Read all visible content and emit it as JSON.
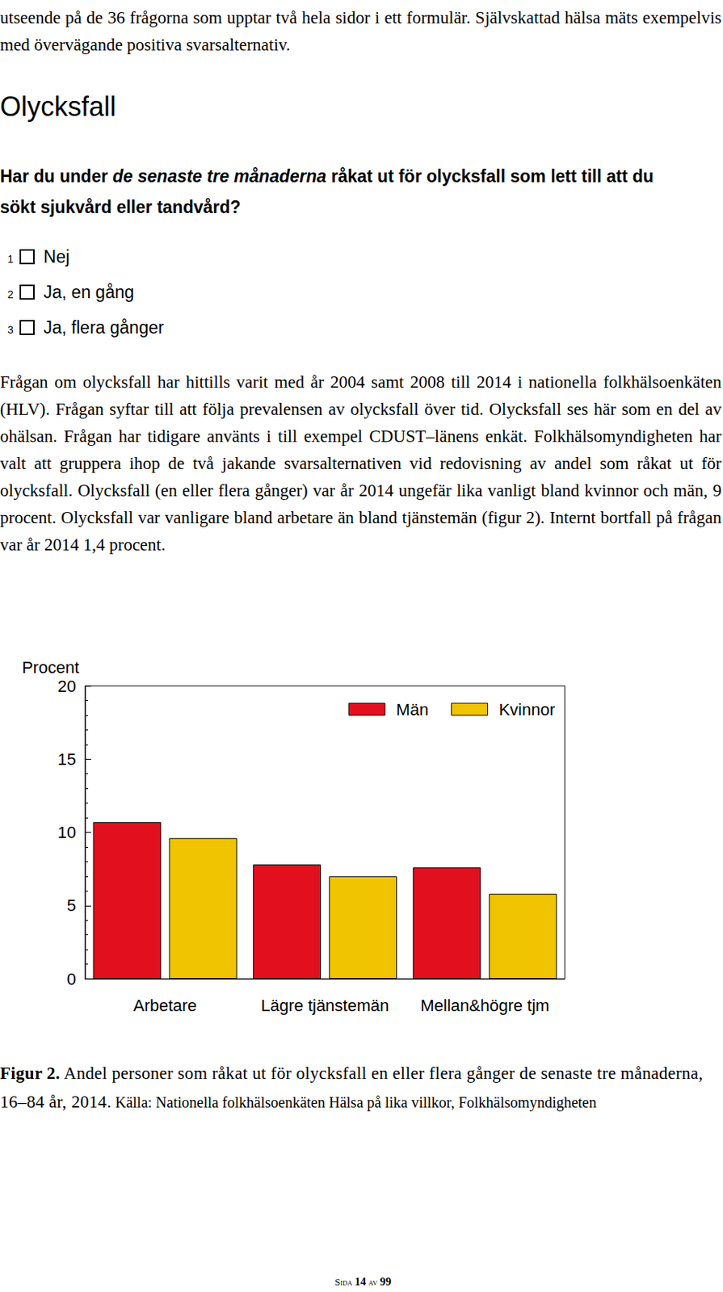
{
  "document": {
    "intro": "utseende på de 36 frågorna som upptar två hela sidor i ett formulär. Självskattad hälsa mäts exempelvis med övervägande positiva svarsalternativ.",
    "heading": "Olycksfall",
    "question": {
      "before": "Har du under ",
      "emphasis": "de senaste tre månaderna",
      "after": " råkat ut för olycksfall som lett till att du sökt sjukvård eller tandvård?"
    },
    "options": [
      {
        "code": "1",
        "label": "Nej"
      },
      {
        "code": "2",
        "label": "Ja, en gång"
      },
      {
        "code": "3",
        "label": "Ja, flera gånger"
      }
    ],
    "paragraph": "Frågan om olycksfall har hittills varit med år 2004 samt 2008 till 2014 i nationella folkhälsoenkäten (HLV). Frågan syftar till att följa prevalensen av olycksfall över tid. Olycksfall ses här som en del av ohälsan. Frågan har tidigare använts i till exempel CDUST–länens enkät. Folkhälsomyndigheten har valt att gruppera ihop de två jakande svarsalternativen vid redovisning av andel som råkat ut för olycksfall. Olycksfall (en eller flera gånger) var år 2014 ungefär lika vanligt bland kvinnor och män, 9 procent. Olycksfall var vanligare bland arbetare än bland tjänstemän (figur 2). Internt bortfall på frågan var år 2014 1,4 procent.",
    "caption": {
      "label": "Figur 2.",
      "text": " Andel personer som råkat ut för olycksfall en eller flera gånger de senaste tre månaderna, 16–84 år, 2014.",
      "source": " Källa: Nationella folkhälsoenkäten Hälsa på lika villkor, Folkhälsomyndigheten"
    },
    "page": {
      "word1": "Sida",
      "number": "14",
      "word2": "av",
      "total": "99"
    }
  },
  "chart_data": {
    "type": "bar",
    "y_label": "Procent",
    "categories": [
      "Arbetare",
      "Lägre tjänstemän",
      "Mellan&högre tjm"
    ],
    "series": [
      {
        "name": "Män",
        "color": "#e2101f",
        "values": [
          10.7,
          7.8,
          7.6
        ]
      },
      {
        "name": "Kvinnor",
        "color": "#f0c400",
        "values": [
          9.6,
          7.0,
          5.8
        ]
      }
    ],
    "ylim": [
      0,
      20
    ],
    "yticks": [
      0,
      5,
      10,
      15,
      20
    ],
    "grid": false,
    "legend": "top right"
  }
}
